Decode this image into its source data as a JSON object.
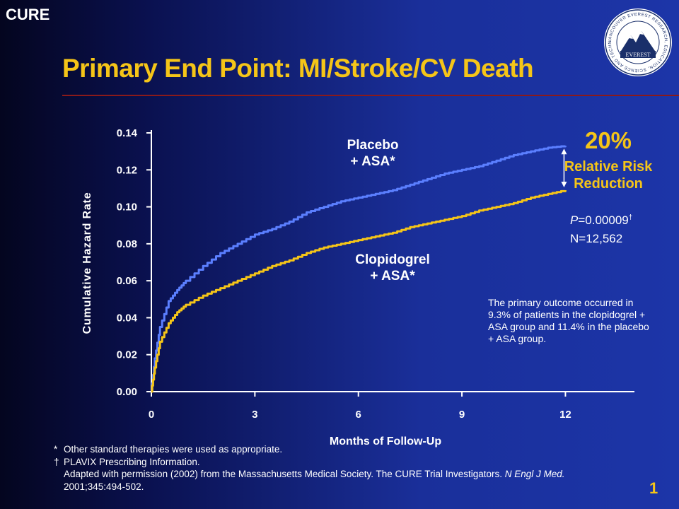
{
  "header": {
    "corner_tag": "CURE",
    "title": "Primary End Point: MI/Stroke/CV Death"
  },
  "logo": {
    "name": "everest-seal",
    "text": "EVEREST",
    "ring_text": "VANCOUVER EVEREST RESEARCH, EDUCATION, SCIENCE AND TECHNOLOGY"
  },
  "chart_data": {
    "type": "line",
    "title": "",
    "xlabel": "Months of Follow-Up",
    "ylabel": "Cumulative Hazard Rate",
    "xlim": [
      0,
      14
    ],
    "ylim": [
      0,
      0.14
    ],
    "xticks": [
      0,
      3,
      6,
      9,
      12
    ],
    "xtick_labels": [
      "0",
      "3",
      "6",
      "9",
      "12"
    ],
    "yticks": [
      0,
      0.02,
      0.04,
      0.06,
      0.08,
      0.1,
      0.12,
      0.14
    ],
    "ytick_labels": [
      "0.00",
      "0.02",
      "0.04",
      "0.06",
      "0.08",
      "0.10",
      "0.12",
      "0.14"
    ],
    "grid": false,
    "series": [
      {
        "name": "Placebo + ASA*",
        "label_lines": [
          "Placebo",
          "+ ASA*"
        ],
        "color": "#5b7fff",
        "x": [
          0,
          0.1,
          0.25,
          0.5,
          0.75,
          1,
          1.5,
          2,
          2.5,
          3,
          3.5,
          4,
          4.5,
          5,
          5.5,
          6,
          6.5,
          7,
          7.5,
          8,
          8.5,
          9,
          9.5,
          10,
          10.5,
          11,
          11.5,
          12
        ],
        "y": [
          0,
          0.018,
          0.035,
          0.049,
          0.055,
          0.06,
          0.068,
          0.075,
          0.08,
          0.085,
          0.088,
          0.092,
          0.097,
          0.1,
          0.103,
          0.105,
          0.107,
          0.109,
          0.112,
          0.115,
          0.118,
          0.12,
          0.122,
          0.125,
          0.128,
          0.13,
          0.132,
          0.133
        ]
      },
      {
        "name": "Clopidogrel + ASA*",
        "label_lines": [
          "Clopidogrel",
          "+ ASA*"
        ],
        "color": "#f5c518",
        "x": [
          0,
          0.1,
          0.25,
          0.5,
          0.75,
          1,
          1.5,
          2,
          2.5,
          3,
          3.5,
          4,
          4.5,
          5,
          5.5,
          6,
          6.5,
          7,
          7.5,
          8,
          8.5,
          9,
          9.5,
          10,
          10.5,
          11,
          11.5,
          12
        ],
        "y": [
          0,
          0.013,
          0.027,
          0.037,
          0.043,
          0.047,
          0.052,
          0.056,
          0.06,
          0.064,
          0.068,
          0.071,
          0.075,
          0.078,
          0.08,
          0.082,
          0.084,
          0.086,
          0.089,
          0.091,
          0.093,
          0.095,
          0.098,
          0.1,
          0.102,
          0.105,
          0.107,
          0.109
        ]
      }
    ]
  },
  "annotation": {
    "rrr_percent": "20%",
    "rrr_line1": "Relative Risk",
    "rrr_line2": "Reduction",
    "p_prefix": "P",
    "p_value": "=0.00009",
    "p_mark": "†",
    "n_value": "N=12,562",
    "outcome_note": "The primary outcome occurred in 9.3% of patients in the clopidogrel + ASA group and 11.4% in the placebo + ASA group."
  },
  "footnotes": {
    "mark1": "*",
    "line1": "Other standard therapies were used as appropriate.",
    "mark2": "†",
    "line2": "PLAVIX Prescribing Information.",
    "line3_prefix": "Adapted with permission (2002) from the Massachusetts Medical Society. The CURE Trial Investigators. ",
    "line3_journal": "N Engl J Med.",
    "line4": "2001;345:494-502."
  },
  "page_number": "1"
}
